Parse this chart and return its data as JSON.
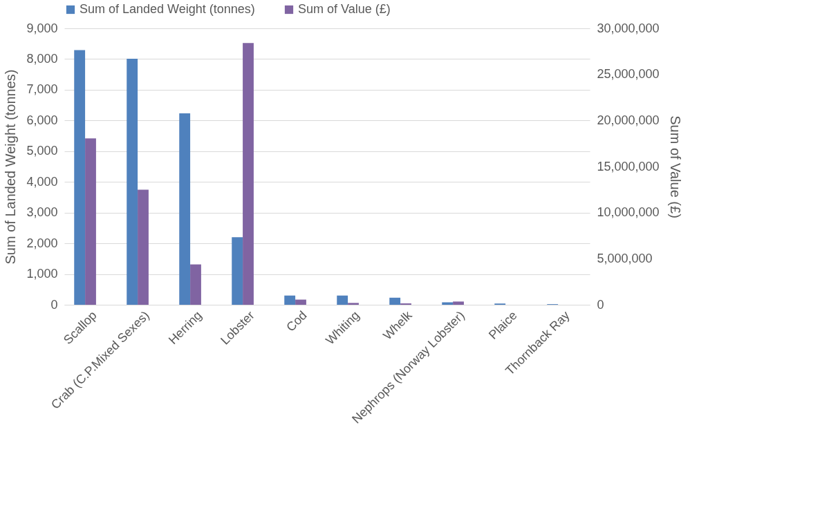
{
  "chart_data": {
    "type": "bar",
    "categories": [
      "Scallop",
      "Crab (C.P.Mixed Sexes)",
      "Herring",
      "Lobster",
      "Cod",
      "Whiting",
      "Whelk",
      "Nephrops (Norway Lobster)",
      "Plaice",
      "Thornback Ray"
    ],
    "series": [
      {
        "name": "Sum of Landed Weight (tonnes)",
        "color": "#4f81bd",
        "values": [
          8290,
          8010,
          6230,
          2200,
          300,
          300,
          230,
          80,
          40,
          20
        ]
      },
      {
        "name": "Sum of Value (£)",
        "color": "#8064a2",
        "axis": "y2",
        "values": [
          18050000,
          12480000,
          4380000,
          28400000,
          560000,
          200000,
          150000,
          350000,
          0,
          0
        ]
      }
    ],
    "ylabel": "Sum of Landed Weight (tonnes)",
    "y2label": "Sum of Value (£)",
    "ylim": [
      0,
      9000
    ],
    "yticks": [
      0,
      {
        "value": 1000,
        "label": "1,000"
      },
      {
        "value": 2000,
        "label": "2,000"
      },
      {
        "value": 3000,
        "label": "3,000"
      },
      {
        "value": 4000,
        "label": "4,000"
      },
      {
        "value": 5000,
        "label": "5,000"
      },
      {
        "value": 6000,
        "label": "6,000"
      },
      {
        "value": 7000,
        "label": "7,000"
      },
      {
        "value": 8000,
        "label": "8,000"
      },
      {
        "value": 9000,
        "label": "9,000"
      }
    ],
    "y2lim": [
      0,
      30000000
    ],
    "y2ticks": [
      0,
      {
        "value": 5000000,
        "label": "5,000,000"
      },
      {
        "value": 10000000,
        "label": "10,000,000"
      },
      {
        "value": 15000000,
        "label": "15,000,000"
      },
      {
        "value": 20000000,
        "label": "20,000,000"
      },
      {
        "value": 25000000,
        "label": "25,000,000"
      },
      {
        "value": 30000000,
        "label": "30,000,000"
      }
    ],
    "grid": "y",
    "legend": "top"
  }
}
